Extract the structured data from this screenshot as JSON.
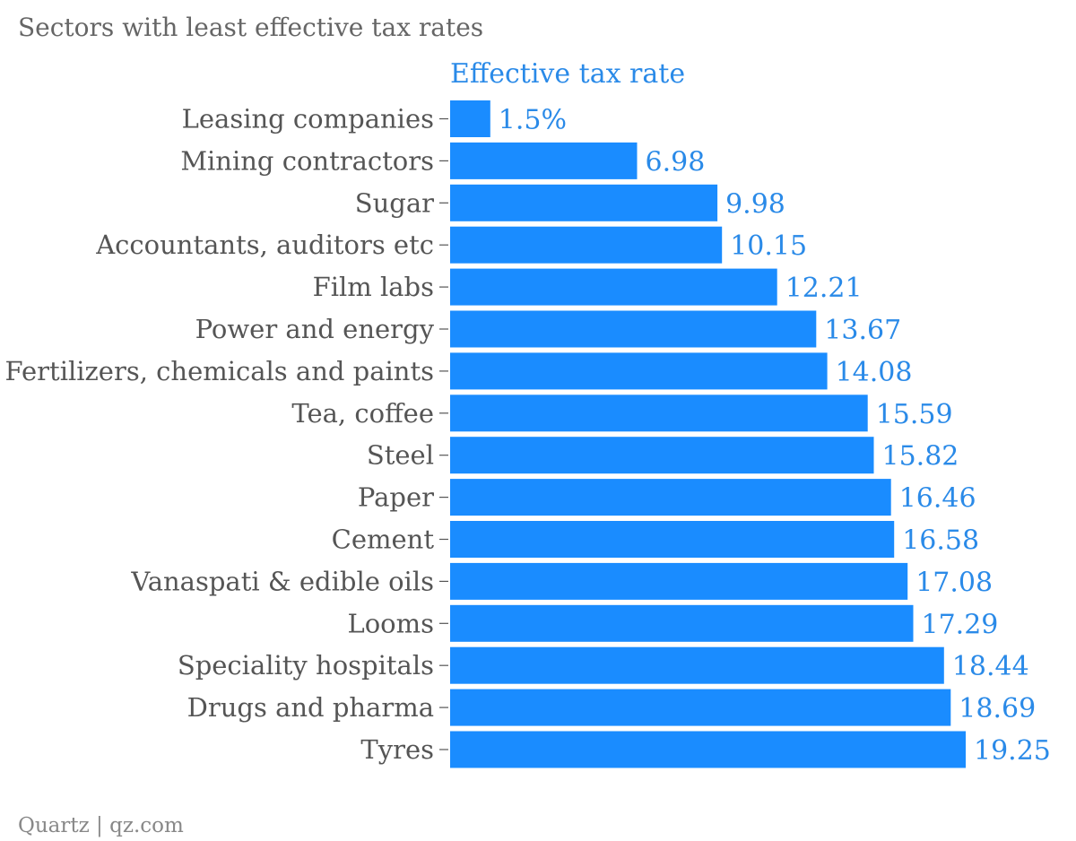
{
  "chart_data": {
    "type": "bar",
    "orientation": "horizontal",
    "title": "Sectors with least effective tax rates",
    "series_name": "Effective tax rate",
    "categories": [
      "Leasing companies",
      "Mining contractors",
      "Sugar",
      "Accountants, auditors etc",
      "Film labs",
      "Power and energy",
      "Fertilizers, chemicals and paints",
      "Tea, coffee",
      "Steel",
      "Paper",
      "Cement",
      "Vanaspati & edible oils",
      "Looms",
      "Speciality hospitals",
      "Drugs and pharma",
      "Tyres"
    ],
    "values": [
      1.5,
      6.98,
      9.98,
      10.15,
      12.21,
      13.67,
      14.08,
      15.59,
      15.82,
      16.46,
      16.58,
      17.08,
      17.29,
      18.44,
      18.69,
      19.25
    ],
    "value_labels": [
      "1.5%",
      "6.98",
      "9.98",
      "10.15",
      "12.21",
      "13.67",
      "14.08",
      "15.59",
      "15.82",
      "16.46",
      "16.58",
      "17.08",
      "17.29",
      "18.44",
      "18.69",
      "19.25"
    ],
    "xlim": [
      0,
      19.25
    ],
    "grid": false,
    "bar_color": "#1a8cff",
    "label_color": "#2a8ae8"
  },
  "footer": {
    "credit": "Quartz | qz.com"
  }
}
